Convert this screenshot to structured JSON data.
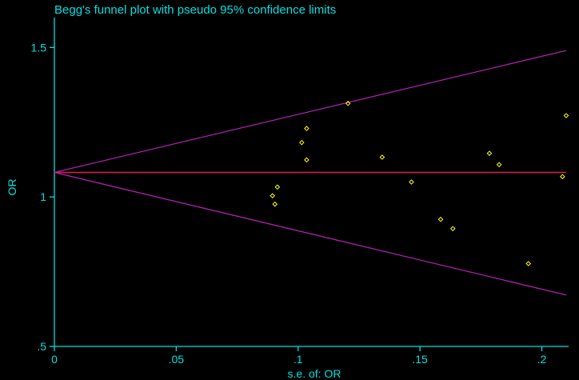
{
  "chart_data": {
    "type": "scatter",
    "title": "Begg's funnel plot with pseudo 95% confidence limits",
    "xlabel": "s.e. of: OR",
    "ylabel": "OR",
    "xlim": [
      0,
      0.211
    ],
    "ylim": [
      0.5,
      1.6
    ],
    "xticks": [
      {
        "value": 0,
        "label": "0"
      },
      {
        "value": 0.05,
        "label": ".05"
      },
      {
        "value": 0.1,
        "label": ".1"
      },
      {
        "value": 0.15,
        "label": ".15"
      },
      {
        "value": 0.2,
        "label": ".2"
      }
    ],
    "yticks": [
      {
        "value": 0.5,
        "label": ".5"
      },
      {
        "value": 1.0,
        "label": "1"
      },
      {
        "value": 1.5,
        "label": "1.5"
      }
    ],
    "pooled_estimate": 1.082,
    "funnel_limits": {
      "x": [
        0,
        0.21
      ],
      "upper": [
        1.082,
        1.49
      ],
      "lower": [
        1.082,
        0.672
      ]
    },
    "points": [
      {
        "x": 0.0895,
        "y": 1.004
      },
      {
        "x": 0.0905,
        "y": 0.976
      },
      {
        "x": 0.0915,
        "y": 1.033
      },
      {
        "x": 0.1015,
        "y": 1.182
      },
      {
        "x": 0.1035,
        "y": 1.229
      },
      {
        "x": 0.1035,
        "y": 1.124
      },
      {
        "x": 0.1205,
        "y": 1.313
      },
      {
        "x": 0.1345,
        "y": 1.133
      },
      {
        "x": 0.1465,
        "y": 1.05
      },
      {
        "x": 0.1585,
        "y": 0.925
      },
      {
        "x": 0.1635,
        "y": 0.894
      },
      {
        "x": 0.1785,
        "y": 1.146
      },
      {
        "x": 0.1825,
        "y": 1.108
      },
      {
        "x": 0.1945,
        "y": 0.777
      },
      {
        "x": 0.2085,
        "y": 1.068
      },
      {
        "x": 0.21,
        "y": 1.272
      }
    ],
    "colors": {
      "background": "#000000",
      "axis": "#00e0e0",
      "text": "#00e0e0",
      "limit_lines": "#b020b0",
      "pooled_line": "#d0204a",
      "markers": "#ffff00"
    },
    "grid": false,
    "legend": "none"
  }
}
